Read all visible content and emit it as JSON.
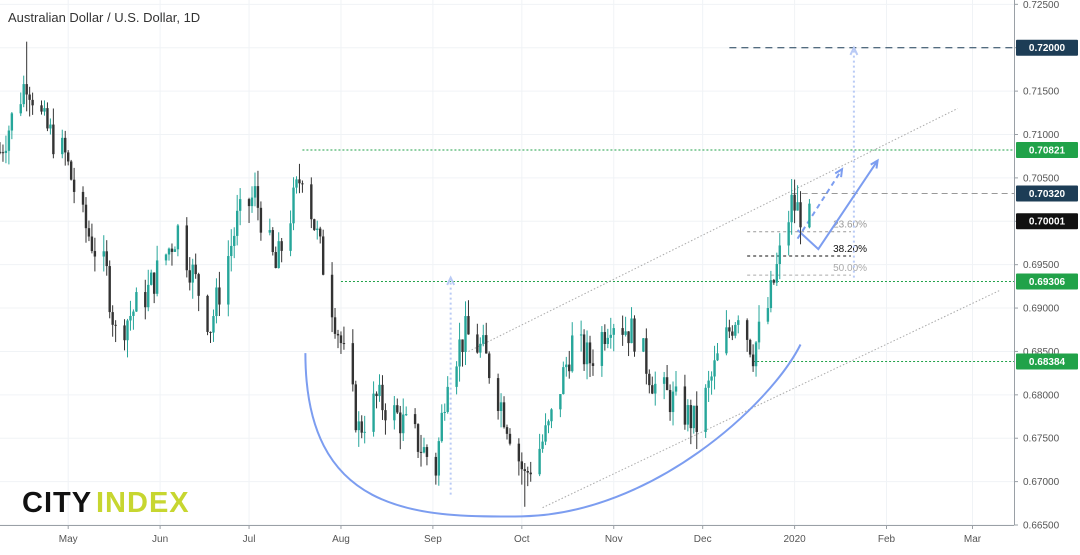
{
  "title": "Australian Dollar / U.S. Dollar, 1D",
  "logo": {
    "city": "CITY",
    "index": "INDEX"
  },
  "colors": {
    "up": "#26a69a",
    "down": "#333333",
    "green_line": "#21a249",
    "navy": "#1d3d56",
    "black": "#111111",
    "blue": "#7c9df0",
    "logo_accent": "#c7d630"
  },
  "chart_data": {
    "type": "candlestick",
    "title": "Australian Dollar / U.S. Dollar, 1D",
    "xlabel": "",
    "ylabel": "",
    "x_range": [
      "2019-04-08",
      "2020-03-15"
    ],
    "ylim": [
      0.665,
      0.7255
    ],
    "x_ticks": [
      {
        "label": "May",
        "date": "2019-05-01"
      },
      {
        "label": "Jun",
        "date": "2019-06-01"
      },
      {
        "label": "Jul",
        "date": "2019-07-01"
      },
      {
        "label": "Aug",
        "date": "2019-08-01"
      },
      {
        "label": "Sep",
        "date": "2019-09-01"
      },
      {
        "label": "Oct",
        "date": "2019-10-01"
      },
      {
        "label": "Nov",
        "date": "2019-11-01"
      },
      {
        "label": "Dec",
        "date": "2019-12-01"
      },
      {
        "label": "2020",
        "date": "2020-01-01"
      },
      {
        "label": "Feb",
        "date": "2020-02-01"
      },
      {
        "label": "Mar",
        "date": "2020-03-01"
      }
    ],
    "y_ticks": [
      "0.72500",
      "0.72000",
      "0.71500",
      "0.71000",
      "0.70500",
      "0.70000",
      "0.69500",
      "0.69000",
      "0.68500",
      "0.68000",
      "0.67500",
      "0.67000",
      "0.66500"
    ],
    "close_path": [
      [
        "2019-04-08",
        0.708
      ],
      [
        "2019-04-17",
        0.7165
      ],
      [
        "2019-04-23",
        0.711
      ],
      [
        "2019-04-30",
        0.7075
      ],
      [
        "2019-05-06",
        0.7
      ],
      [
        "2019-05-14",
        0.6938
      ],
      [
        "2019-05-17",
        0.687
      ],
      [
        "2019-05-28",
        0.692
      ],
      [
        "2019-06-07",
        0.699
      ],
      [
        "2019-06-18",
        0.688
      ],
      [
        "2019-06-27",
        0.7
      ],
      [
        "2019-07-03",
        0.703
      ],
      [
        "2019-07-10",
        0.6945
      ],
      [
        "2019-07-19",
        0.706
      ],
      [
        "2019-07-26",
        0.695
      ],
      [
        "2019-08-01",
        0.686
      ],
      [
        "2019-08-07",
        0.676
      ],
      [
        "2019-08-13",
        0.6795
      ],
      [
        "2019-08-20",
        0.6775
      ],
      [
        "2019-08-26",
        0.675
      ],
      [
        "2019-09-02",
        0.6715
      ],
      [
        "2019-09-06",
        0.683
      ],
      [
        "2019-09-12",
        0.687
      ],
      [
        "2019-09-18",
        0.685
      ],
      [
        "2019-09-27",
        0.676
      ],
      [
        "2019-10-02",
        0.6705
      ],
      [
        "2019-10-10",
        0.676
      ],
      [
        "2019-10-18",
        0.686
      ],
      [
        "2019-10-24",
        0.684
      ],
      [
        "2019-10-31",
        0.689
      ],
      [
        "2019-11-08",
        0.687
      ],
      [
        "2019-11-15",
        0.681
      ],
      [
        "2019-11-22",
        0.679
      ],
      [
        "2019-11-29",
        0.6765
      ],
      [
        "2019-12-06",
        0.684
      ],
      [
        "2019-12-13",
        0.69
      ],
      [
        "2019-12-18",
        0.685
      ],
      [
        "2019-12-23",
        0.69
      ],
      [
        "2019-12-31",
        0.702
      ],
      [
        "2020-01-03",
        0.701
      ],
      [
        "2020-01-06",
        0.7
      ]
    ],
    "extremes": {
      "high": {
        "date": "2019-04-17",
        "value": 0.7207
      },
      "low": {
        "date": "2019-10-02",
        "value": 0.6671
      }
    },
    "horizontal_levels": [
      {
        "value": 0.72,
        "label": "0.72000",
        "style": "dashed",
        "color": "navy",
        "from": "2019-12-10"
      },
      {
        "value": 0.70821,
        "label": "0.70821",
        "style": "dotted",
        "color": "green_line",
        "from": "2019-07-19"
      },
      {
        "value": 0.7032,
        "label": "0.70320",
        "style": "dashed-gray",
        "color": "navy",
        "from": "2019-12-31"
      },
      {
        "value": 0.70001,
        "label": "0.70001",
        "style": "none",
        "color": "black",
        "from": "2020-01-06"
      },
      {
        "value": 0.69306,
        "label": "0.69306",
        "style": "dotted",
        "color": "green_line",
        "from": "2019-08-01"
      },
      {
        "value": 0.68384,
        "label": "0.68384",
        "style": "dotted",
        "color": "green_line",
        "from": "2019-12-18"
      }
    ],
    "fib_levels": [
      {
        "label": "23.60%",
        "value": 0.6988,
        "color": "#999999"
      },
      {
        "label": "38.20%",
        "value": 0.696,
        "color": "#111111"
      },
      {
        "label": "50.00%",
        "value": 0.6938,
        "color": "#aaaaaa"
      }
    ],
    "channel": {
      "upper": [
        [
          "2019-09-13",
          0.685
        ],
        [
          "2020-02-25",
          0.713
        ]
      ],
      "lower": [
        [
          "2019-10-08",
          0.667
        ],
        [
          "2020-03-10",
          0.692
        ]
      ]
    },
    "arc": {
      "start": [
        "2019-07-20",
        0.6848
      ],
      "bottom": [
        "2019-10-01",
        0.666
      ],
      "end": [
        "2020-01-03",
        0.6858
      ]
    },
    "projections": [
      {
        "from": [
          "2019-09-07",
          0.6685
        ],
        "to": [
          "2019-09-07",
          0.6935
        ],
        "style": "dotted"
      },
      {
        "from": [
          "2020-01-21",
          0.6935
        ],
        "to": [
          "2020-01-21",
          0.72
        ],
        "style": "dotted"
      },
      {
        "from": [
          "2020-01-02",
          0.698
        ],
        "to": [
          "2020-01-17",
          0.706
        ],
        "style": "dashed"
      },
      {
        "path": [
          [
            "2020-01-02",
            0.699
          ],
          [
            "2020-01-09",
            0.6968
          ],
          [
            "2020-01-29",
            0.707
          ]
        ],
        "style": "solid"
      }
    ]
  }
}
